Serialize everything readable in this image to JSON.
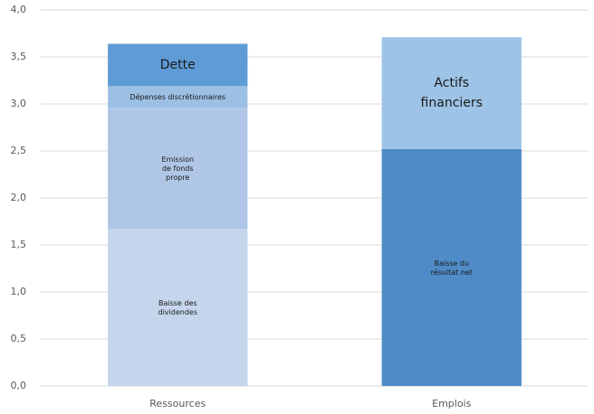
{
  "chart_data": {
    "type": "stacked_bar",
    "categories": [
      "Ressources",
      "Emplois"
    ],
    "series": [
      {
        "name": "Baisse des\ndividendes",
        "color": "#c5d6ec",
        "values": [
          1.67,
          null
        ]
      },
      {
        "name": "Emission\nde fonds\npropre",
        "color": "#afc6e6",
        "values": [
          1.29,
          null
        ]
      },
      {
        "name": "Dépenses discrétionnaires",
        "color": "#9cbfe4",
        "values": [
          0.23,
          null
        ]
      },
      {
        "name": "Dette",
        "color": "#5f9bd6",
        "values": [
          0.45,
          null
        ]
      },
      {
        "name": "Baisse du\nrésultat net",
        "color": "#4f8cc7",
        "values": [
          null,
          2.52
        ]
      },
      {
        "name": "Actifs\nfinanciers",
        "color": "#9dc3e6",
        "values": [
          null,
          1.19
        ]
      }
    ],
    "ylim": [
      0,
      4
    ],
    "yticks": [
      {
        "value": 0,
        "label": "0,0"
      },
      {
        "value": 0.5,
        "label": "0,5"
      },
      {
        "value": 1,
        "label": "1,0"
      },
      {
        "value": 1.5,
        "label": "1,5"
      },
      {
        "value": 2,
        "label": "2,0"
      },
      {
        "value": 2.5,
        "label": "2,5"
      },
      {
        "value": 3,
        "label": "3,0"
      },
      {
        "value": 3.5,
        "label": "3,5"
      },
      {
        "value": 4,
        "label": "4,0"
      }
    ],
    "grid": true
  }
}
